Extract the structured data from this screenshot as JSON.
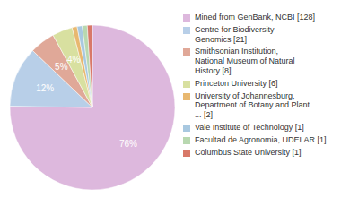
{
  "chart_data": {
    "type": "pie",
    "categories": [
      "Mined from GenBank, NCBI [128]",
      "Centre for Biodiversity\nGenomics [21]",
      "Smithsonian Institution,\nNational Museum of Natural\nHistory [8]",
      "Princeton University [6]",
      "University of Johannesburg,\nDepartment of Botany and Plant\n... [2]",
      "Vale Institute of Technology [1]",
      "Facultad de Agronomia, UDELAR [1]",
      "Columbus State University [1]"
    ],
    "values": [
      76,
      12,
      5,
      4,
      1,
      1,
      1,
      1
    ],
    "value_labels": [
      "76%",
      "12%",
      "5%",
      "4%",
      null,
      null,
      null,
      null
    ],
    "colors": [
      "#ddb8dd",
      "#b8cfe8",
      "#e0a898",
      "#d8e0a0",
      "#e8b870",
      "#a8c8e0",
      "#b8d8b0",
      "#d87868"
    ],
    "data_labels": true,
    "legend": "right"
  }
}
